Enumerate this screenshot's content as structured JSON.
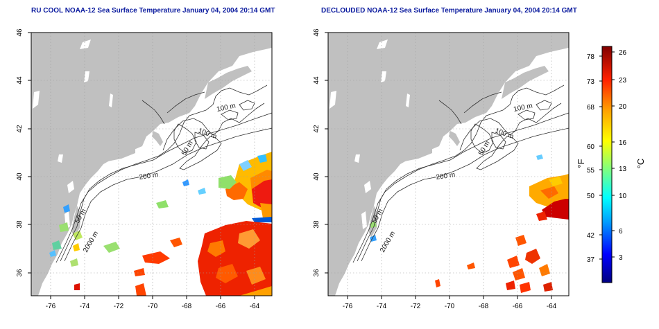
{
  "maps": [
    {
      "title": "RU COOL NOAA-12 Sea Surface Temperature January 04, 2004 20:14 GMT",
      "x_ticks": [
        "-76",
        "-74",
        "-72",
        "-70",
        "-68",
        "-66",
        "-64"
      ],
      "y_ticks": [
        "36",
        "38",
        "40",
        "42",
        "44",
        "46"
      ],
      "contour_labels": [
        "100 m",
        "100 m",
        "50 m",
        "200 m",
        "50 m",
        "2000 m"
      ]
    },
    {
      "title": "DECLOUDED NOAA-12 Sea Surface Temperature January 04, 2004 20:14 GMT",
      "x_ticks": [
        "-76",
        "-74",
        "-72",
        "-70",
        "-68",
        "-66",
        "-64"
      ],
      "y_ticks": [
        "36",
        "38",
        "40",
        "42",
        "44",
        "46"
      ],
      "contour_labels": [
        "100 m",
        "100 m",
        "50 m",
        "200 m",
        "50 m",
        "2000 m"
      ]
    }
  ],
  "colorbar": {
    "fahrenheit_ticks": [
      "78",
      "73",
      "68",
      "60",
      "55",
      "50",
      "42",
      "37"
    ],
    "celsius_ticks": [
      "26",
      "23",
      "20",
      "16",
      "13",
      "10",
      "6",
      "3"
    ],
    "fahrenheit_label": "°F",
    "celsius_label": "°C",
    "colors": [
      "#00007f",
      "#0000ff",
      "#00a0ff",
      "#00ffff",
      "#7fff7f",
      "#ffff00",
      "#ffa000",
      "#ff2000",
      "#7f0000"
    ]
  },
  "colors": {
    "land": "#c0c0c0",
    "title": "#0a1a9e",
    "grid": "#a0a0a0"
  }
}
